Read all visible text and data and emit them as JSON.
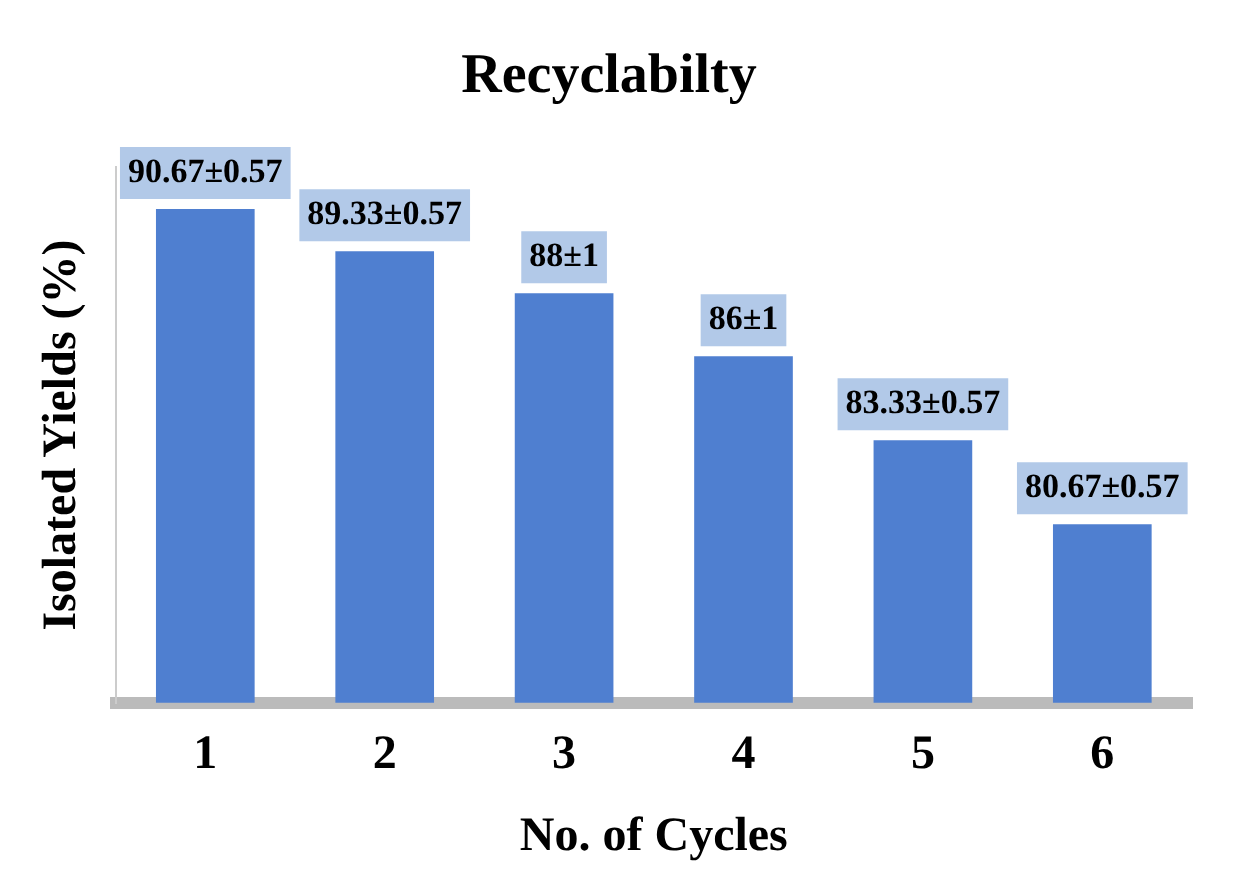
{
  "chart_data": {
    "type": "bar",
    "title": "Recyclabilty",
    "xlabel": "No. of Cycles",
    "ylabel": "Isolated Yields (%)",
    "categories": [
      "1",
      "2",
      "3",
      "4",
      "5",
      "6"
    ],
    "values": [
      90.67,
      89.33,
      88,
      86,
      83.33,
      80.67
    ],
    "value_labels": [
      "90.67±0.57",
      "89.33±0.57",
      "88±1",
      "86±1",
      "83.33±0.57",
      "80.67±0.57"
    ],
    "color": "#4f7fd0",
    "ylim": [
      75,
      92
    ],
    "tick_labels": "x",
    "grid": false,
    "legend": false
  }
}
